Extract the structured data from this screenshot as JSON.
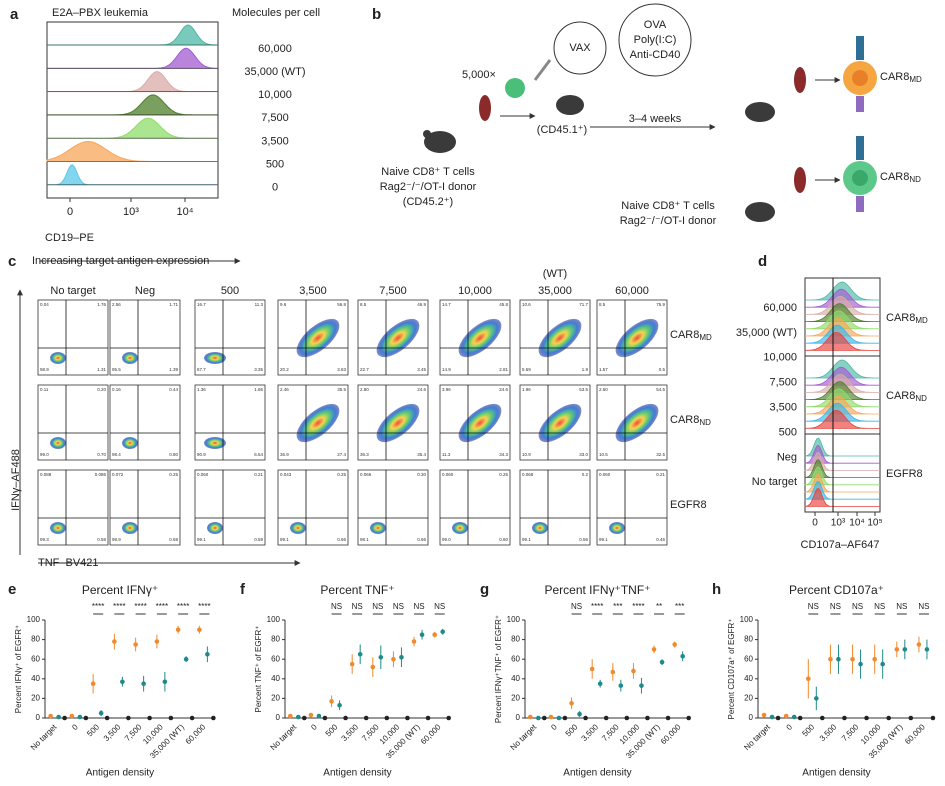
{
  "panel_letters": [
    "a",
    "b",
    "c",
    "d",
    "e",
    "f",
    "g",
    "h"
  ],
  "panel_a": {
    "title": "E2A–PBX leukemia",
    "legend_title": "Molecules per cell",
    "levels": [
      "60,000",
      "35,000 (WT)",
      "10,000",
      "7,500",
      "3,500",
      "500",
      "0"
    ],
    "colors": [
      "#4cb8a6",
      "#a35bd0",
      "#d9aba8",
      "#4d7f2a",
      "#8fdc6a",
      "#f7a65a",
      "#5bc8ea"
    ],
    "xticks": [
      "0",
      "10³",
      "10⁴"
    ],
    "xlabel": "CD19–PE"
  },
  "panel_b": {
    "dose": "5,000×",
    "vax": "VAX",
    "adjuvants": [
      "OVA",
      "Poly(I:C)",
      "Anti-CD40"
    ],
    "host": "(CD45.1⁺)",
    "interval": "3–4 weeks",
    "donor": [
      "Naive CD8⁺ T cells",
      "Rag2⁻/⁻/OT-I donor",
      "(CD45.2⁺)"
    ],
    "donor2": [
      "Naive CD8⁺ T cells",
      "Rag2⁻/⁻/OT-I donor"
    ],
    "product_md": {
      "text": "CAR8",
      "sub": "MD"
    },
    "product_nd": {
      "text": "CAR8",
      "sub": "ND"
    }
  },
  "panel_c": {
    "header": "Increasing target antigen expression",
    "wt": "(WT)",
    "columns": [
      "No target",
      "Neg",
      "500",
      "3,500",
      "7,500",
      "10,000",
      "35,000",
      "60,000"
    ],
    "ylabel": "IFNγ–AF488",
    "xlabel": "TNF–BV421",
    "rows": [
      {
        "label": {
          "text": "CAR8",
          "sub": "MD"
        },
        "color": "#f08a2c",
        "quadrants": [
          [
            "0.04",
            "1.76",
            "98.9",
            "1.31"
          ],
          [
            "2.56",
            "1.71",
            "95.5",
            "1.39"
          ],
          [
            "16.7",
            "11.3",
            "67.7",
            "3.35"
          ],
          [
            "9.6",
            "56.8",
            "20.2",
            "3.63"
          ],
          [
            "8.5",
            "46.9",
            "22.7",
            "3.45"
          ],
          [
            "14.7",
            "45.8",
            "14.9",
            "2.81"
          ],
          [
            "10.6",
            "71.7",
            "5.69",
            "1.9"
          ],
          [
            "8.5",
            "75.9",
            "1.57",
            "0.5"
          ]
        ]
      },
      {
        "label": {
          "text": "CAR8",
          "sub": "ND"
        },
        "color": "#1f8a8a",
        "quadrants": [
          [
            "0.11",
            "0.20",
            "99.0",
            "0.70"
          ],
          [
            "0.16",
            "0.44",
            "98.4",
            "0.80"
          ],
          [
            "1.36",
            "1.86",
            "90.9",
            "6.54"
          ],
          [
            "2.46",
            "35.5",
            "36.9",
            "27.4"
          ],
          [
            "2.80",
            "24.6",
            "36.3",
            "35.4"
          ],
          [
            "3.96",
            "24.6",
            "11.3",
            "34.3"
          ],
          [
            "1.96",
            "53.5",
            "10.9",
            "33.0"
          ],
          [
            "2.60",
            "54.5",
            "10.5",
            "32.5"
          ]
        ]
      },
      {
        "label": "EGFR8",
        "color": "#888888",
        "quadrants": [
          [
            "0.088",
            "0.086",
            "99.3",
            "0.58"
          ],
          [
            "0.072",
            "0.25",
            "98.9",
            "0.68"
          ],
          [
            "0.060",
            "0.21",
            "99.1",
            "0.59"
          ],
          [
            "0.043",
            "0.25",
            "99.1",
            "0.66"
          ],
          [
            "0.066",
            "0.30",
            "98.1",
            "0.66"
          ],
          [
            "0.060",
            "0.25",
            "99.0",
            "0.60"
          ],
          [
            "0.068",
            "0.2",
            "99.1",
            "0.56"
          ],
          [
            "0.060",
            "0.21",
            "99.1",
            "0.46"
          ]
        ]
      }
    ]
  },
  "panel_d": {
    "levels": [
      "60,000",
      "35,000 (WT)",
      "10,000",
      "7,500",
      "3,500",
      "500",
      "Neg",
      "No target"
    ],
    "colors": [
      "#4cb8a6",
      "#a35bd0",
      "#d9aba8",
      "#4d7f2a",
      "#8fdc6a",
      "#f7a65a",
      "#39b6ea",
      "#e8403a"
    ],
    "groups": [
      {
        "text": "CAR8",
        "sub": "MD"
      },
      {
        "text": "CAR8",
        "sub": "ND"
      },
      "EGFR8"
    ],
    "group_colors": [
      "#f08a2c",
      "#1f8a8a",
      "#888888"
    ],
    "xticks": [
      "0",
      "10³",
      "10⁴",
      "10⁵"
    ],
    "xlabel": "CD107a–AF647"
  },
  "chart_data": [
    {
      "type": "dot",
      "title": "Percent IFNγ⁺",
      "ylabel": "Percent IFNγ⁺ of EGFR⁺",
      "xlabel": "Antigen density",
      "categories": [
        "No target",
        "0",
        "500",
        "3,500",
        "7,500",
        "10,000",
        "35,000 (WT)",
        "60,000"
      ],
      "ylim": [
        0,
        100
      ],
      "yticks": [
        0,
        20,
        40,
        60,
        80,
        100
      ],
      "series": [
        {
          "color": "#f08a2c",
          "values": [
            2,
            2,
            35,
            78,
            75,
            78,
            90,
            90
          ],
          "errors": [
            1,
            1,
            10,
            8,
            7,
            7,
            4,
            4
          ]
        },
        {
          "color": "#1f8a8a",
          "values": [
            1,
            1,
            5,
            37,
            35,
            37,
            60,
            65
          ],
          "errors": [
            1,
            1,
            3,
            5,
            8,
            10,
            3,
            8
          ]
        },
        {
          "color": "#222222",
          "values": [
            0,
            0,
            0,
            0,
            0,
            0,
            0,
            0
          ]
        }
      ],
      "significance": [
        null,
        null,
        "****",
        "****",
        "****",
        "****",
        "****",
        "****"
      ]
    },
    {
      "type": "dot",
      "title": "Percent TNF⁺",
      "ylabel": "Percent TNF⁺ of EGFR⁺",
      "xlabel": "Antigen density",
      "categories": [
        "No target",
        "0",
        "500",
        "3,500",
        "7,500",
        "10,000",
        "35,000 (WT)",
        "60,000"
      ],
      "ylim": [
        0,
        100
      ],
      "yticks": [
        0,
        20,
        40,
        60,
        80,
        100
      ],
      "series": [
        {
          "color": "#f08a2c",
          "values": [
            2,
            3,
            17,
            55,
            52,
            60,
            78,
            85
          ],
          "errors": [
            1,
            1,
            6,
            10,
            10,
            8,
            5,
            3
          ]
        },
        {
          "color": "#1f8a8a",
          "values": [
            1,
            2,
            13,
            65,
            62,
            62,
            85,
            88
          ],
          "errors": [
            1,
            1,
            5,
            10,
            12,
            10,
            5,
            3
          ]
        },
        {
          "color": "#222222",
          "values": [
            0,
            0,
            0,
            0,
            0,
            0,
            0,
            0
          ]
        }
      ],
      "significance": [
        null,
        null,
        "NS",
        "NS",
        "NS",
        "NS",
        "NS",
        "NS"
      ]
    },
    {
      "type": "dot",
      "title": "Percent IFNγ⁺TNF⁺",
      "ylabel": "Percent IFNγ⁺TNF⁺ of EGFR⁺",
      "xlabel": "Antigen density",
      "categories": [
        "No target",
        "0",
        "500",
        "3,500",
        "7,500",
        "10,000",
        "35,000 (WT)",
        "60,000"
      ],
      "ylim": [
        0,
        100
      ],
      "yticks": [
        0,
        20,
        40,
        60,
        80,
        100
      ],
      "series": [
        {
          "color": "#f08a2c",
          "values": [
            1,
            1,
            15,
            50,
            47,
            48,
            70,
            75
          ],
          "errors": [
            1,
            1,
            6,
            10,
            9,
            8,
            4,
            3
          ]
        },
        {
          "color": "#1f8a8a",
          "values": [
            0,
            0,
            4,
            35,
            33,
            33,
            57,
            63
          ],
          "errors": [
            1,
            1,
            3,
            4,
            6,
            8,
            3,
            5
          ]
        },
        {
          "color": "#222222",
          "values": [
            0,
            0,
            0,
            0,
            0,
            0,
            0,
            0
          ]
        }
      ],
      "significance": [
        null,
        null,
        "NS",
        "****",
        "***",
        "****",
        "**",
        "***"
      ]
    },
    {
      "type": "dot",
      "title": "Percent CD107a⁺",
      "ylabel": "Percent CD107a⁺ of EGFR⁺",
      "xlabel": "Antigen density",
      "categories": [
        "No target",
        "0",
        "500",
        "3,500",
        "7,500",
        "10,000",
        "35,000 (WT)",
        "60,000"
      ],
      "ylim": [
        0,
        100
      ],
      "yticks": [
        0,
        20,
        40,
        60,
        80,
        100
      ],
      "series": [
        {
          "color": "#f08a2c",
          "values": [
            3,
            2,
            40,
            60,
            60,
            60,
            70,
            75
          ],
          "errors": [
            1,
            1,
            20,
            15,
            15,
            15,
            8,
            8
          ]
        },
        {
          "color": "#1f8a8a",
          "values": [
            1,
            1,
            20,
            60,
            55,
            55,
            70,
            70
          ],
          "errors": [
            1,
            1,
            12,
            15,
            15,
            15,
            10,
            10
          ]
        },
        {
          "color": "#222222",
          "values": [
            0,
            0,
            0,
            0,
            0,
            0,
            0,
            0
          ]
        }
      ],
      "significance": [
        null,
        null,
        "NS",
        "NS",
        "NS",
        "NS",
        "NS",
        "NS"
      ]
    }
  ]
}
